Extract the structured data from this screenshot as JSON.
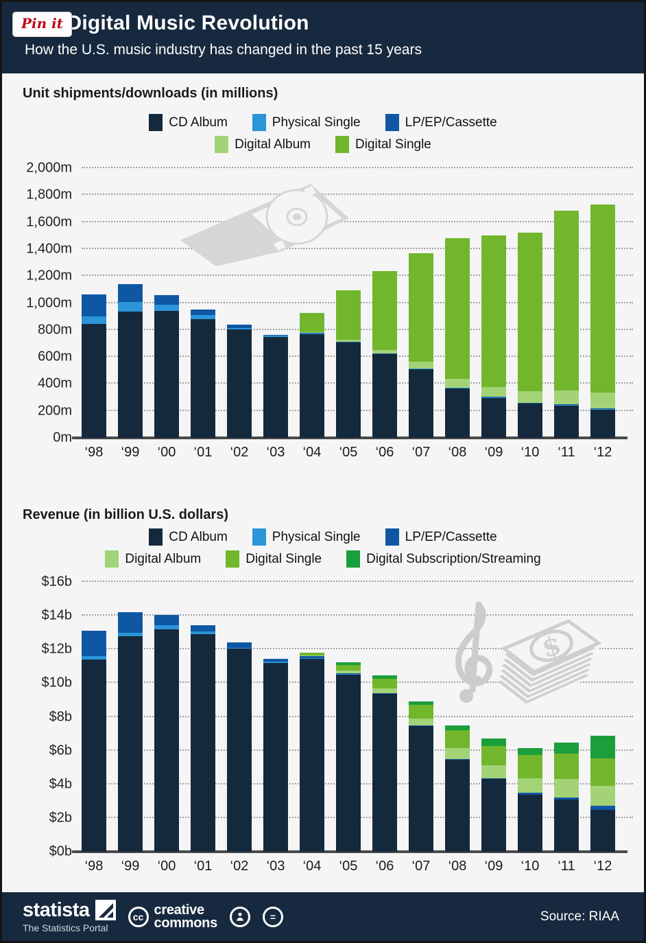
{
  "header": {
    "title": "The Digital Music Revolution",
    "subtitle": "How the U.S. music industry has changed in the past 15 years",
    "pin_button": "Pin it"
  },
  "colors": {
    "header_bg": "#17293e",
    "page_bg": "#f5f5f6",
    "cd_album": "#15293d",
    "physical_single": "#2c94d8",
    "lp_ep_cassette": "#0f57a3",
    "digital_album": "#a4d377",
    "digital_single": "#71b62c",
    "digital_subscription": "#1b9e3c",
    "watermark_gray": "#d2d2d2",
    "pinterest_red": "#bd081c"
  },
  "chart_data": [
    {
      "type": "bar",
      "stacked": true,
      "title": "Unit shipments/downloads (in millions)",
      "categories": [
        "‘98",
        "‘99",
        "‘00",
        "‘01",
        "‘02",
        "‘03",
        "‘04",
        "‘05",
        "‘06",
        "‘07",
        "‘08",
        "‘09",
        "‘10",
        "‘11",
        "‘12"
      ],
      "series": [
        {
          "name": "CD Album",
          "color": "#15293d",
          "values": [
            845,
            939,
            942,
            882,
            803,
            746,
            767,
            705,
            620,
            511,
            368,
            297,
            253,
            241,
            211
          ]
        },
        {
          "name": "Physical Single",
          "color": "#2c94d8",
          "values": [
            57,
            70,
            45,
            30,
            12,
            14,
            8,
            5,
            3,
            2,
            2,
            2,
            2,
            2,
            2
          ]
        },
        {
          "name": "LP/EP/Cassette",
          "color": "#0f57a3",
          "values": [
            160,
            130,
            74,
            40,
            25,
            5,
            5,
            3,
            2,
            3,
            3,
            4,
            4,
            6,
            7
          ]
        },
        {
          "name": "Digital Album",
          "color": "#a4d377",
          "values": [
            0,
            0,
            0,
            0,
            0,
            0,
            5,
            14,
            28,
            50,
            64,
            75,
            86,
            104,
            118
          ]
        },
        {
          "name": "Digital Single",
          "color": "#71b62c",
          "values": [
            0,
            0,
            0,
            0,
            0,
            0,
            139,
            367,
            586,
            805,
            1043,
            1124,
            1177,
            1330,
            1392
          ]
        }
      ],
      "legend_rows": [
        [
          "CD Album",
          "Physical Single",
          "LP/EP/Cassette"
        ],
        [
          "Digital Album",
          "Digital Single"
        ]
      ],
      "ylim": [
        0,
        2000
      ],
      "grid": "dotted",
      "yticks": [
        {
          "label": "0m",
          "value": 0
        },
        {
          "label": "200m",
          "value": 200
        },
        {
          "label": "400m",
          "value": 400
        },
        {
          "label": "600m",
          "value": 600
        },
        {
          "label": "800m",
          "value": 800
        },
        {
          "label": "1,000m",
          "value": 1000
        },
        {
          "label": "1,200m",
          "value": 1200
        },
        {
          "label": "1,400m",
          "value": 1400
        },
        {
          "label": "1,600m",
          "value": 1600
        },
        {
          "label": "1,800m",
          "value": 1800
        },
        {
          "label": "2,000m",
          "value": 2000
        }
      ]
    },
    {
      "type": "bar",
      "stacked": true,
      "title": "Revenue (in billion U.S. dollars)",
      "categories": [
        "‘98",
        "‘99",
        "‘00",
        "‘01",
        "‘02",
        "‘03",
        "‘04",
        "‘05",
        "‘06",
        "‘07",
        "‘08",
        "‘09",
        "‘10",
        "‘11",
        "‘12"
      ],
      "series": [
        {
          "name": "CD Album",
          "color": "#15293d",
          "values": [
            11.4,
            12.8,
            13.2,
            12.9,
            12.05,
            11.2,
            11.45,
            10.5,
            9.35,
            7.45,
            5.45,
            4.3,
            3.4,
            3.1,
            2.5
          ]
        },
        {
          "name": "Physical Single",
          "color": "#2c94d8",
          "values": [
            0.2,
            0.2,
            0.25,
            0.15,
            0.05,
            0.08,
            0.03,
            0.03,
            0,
            0,
            0,
            0,
            0,
            0,
            0
          ]
        },
        {
          "name": "LP/EP/Cassette",
          "color": "#0f57a3",
          "values": [
            1.5,
            1.2,
            0.6,
            0.4,
            0.3,
            0.17,
            0.12,
            0.06,
            0.05,
            0.04,
            0.06,
            0.06,
            0.09,
            0.12,
            0.21
          ]
        },
        {
          "name": "Digital Album",
          "color": "#a4d377",
          "values": [
            0,
            0,
            0,
            0,
            0,
            0,
            0.05,
            0.14,
            0.28,
            0.42,
            0.65,
            0.76,
            0.87,
            1.1,
            1.2
          ]
        },
        {
          "name": "Digital Single",
          "color": "#71b62c",
          "values": [
            0,
            0,
            0,
            0,
            0,
            0,
            0.14,
            0.36,
            0.58,
            0.81,
            1.03,
            1.16,
            1.37,
            1.5,
            1.63
          ]
        },
        {
          "name": "Digital Subscription/Streaming",
          "color": "#1b9e3c",
          "values": [
            0,
            0,
            0,
            0,
            0,
            0,
            0,
            0.15,
            0.21,
            0.2,
            0.31,
            0.42,
            0.44,
            0.67,
            1.35
          ]
        }
      ],
      "legend_rows": [
        [
          "CD Album",
          "Physical Single",
          "LP/EP/Cassette"
        ],
        [
          "Digital Album",
          "Digital Single",
          "Digital Subscription/Streaming"
        ]
      ],
      "ylim": [
        0,
        16
      ],
      "grid": "dotted",
      "yticks": [
        {
          "label": "$0b",
          "value": 0
        },
        {
          "label": "$2b",
          "value": 2
        },
        {
          "label": "$4b",
          "value": 4
        },
        {
          "label": "$6b",
          "value": 6
        },
        {
          "label": "$8b",
          "value": 8
        },
        {
          "label": "$10b",
          "value": 10
        },
        {
          "label": "$12b",
          "value": 12
        },
        {
          "label": "$14b",
          "value": 14
        },
        {
          "label": "$16b",
          "value": 16
        }
      ]
    }
  ],
  "footer": {
    "brand": "statista",
    "tagline": "The Statistics Portal",
    "cc_badge": "cc",
    "license_line1": "creative",
    "license_line2": "commons",
    "nd_glyph": "=",
    "source": "Source: RIAA"
  }
}
